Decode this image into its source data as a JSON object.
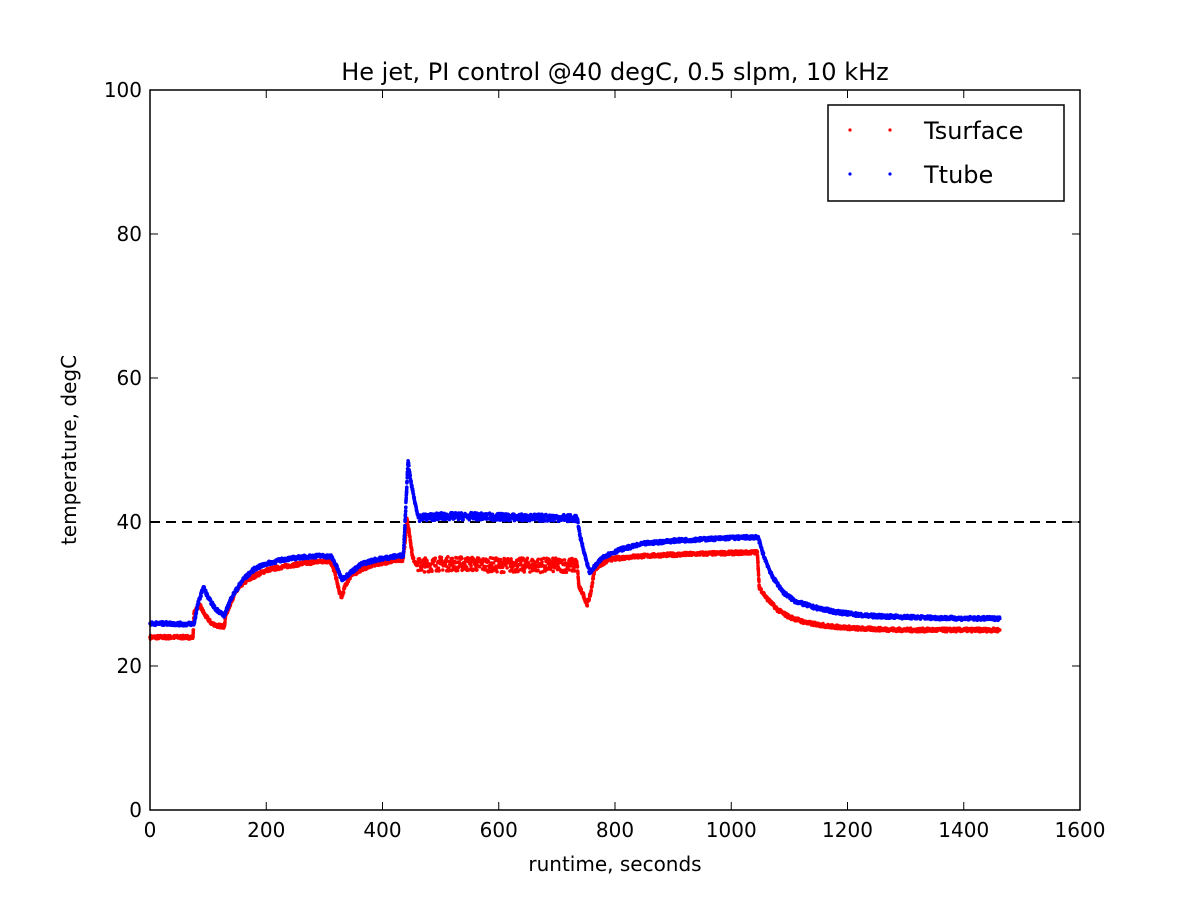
{
  "chart_data": {
    "type": "scatter",
    "title": "He jet, PI control @40 degC, 0.5 slpm, 10 kHz",
    "xlabel": "runtime, seconds",
    "ylabel": "temperature, degC",
    "xlim": [
      0,
      1600
    ],
    "ylim": [
      0,
      100
    ],
    "xticks": [
      0,
      200,
      400,
      600,
      800,
      1000,
      1200,
      1400,
      1600
    ],
    "yticks": [
      0,
      20,
      40,
      60,
      80,
      100
    ],
    "x_tick_labels": [
      "0",
      "200",
      "400",
      "600",
      "800",
      "1000",
      "1200",
      "1400",
      "1600"
    ],
    "y_tick_labels": [
      "0",
      "20",
      "40",
      "60",
      "80",
      "100"
    ],
    "grid": false,
    "legend_position": "top-right",
    "reference_line": {
      "y": 40,
      "style": "dashed",
      "color": "#000000"
    },
    "series": [
      {
        "name": "Tsurface",
        "color": "#ff0000",
        "points": [
          [
            0,
            24.0
          ],
          [
            20,
            24.0
          ],
          [
            40,
            24.0
          ],
          [
            60,
            24.0
          ],
          [
            74,
            24.0
          ],
          [
            76,
            27.5
          ],
          [
            85,
            28.5
          ],
          [
            95,
            27.0
          ],
          [
            105,
            26.0
          ],
          [
            115,
            25.6
          ],
          [
            128,
            25.5
          ],
          [
            130,
            27.0
          ],
          [
            145,
            30.0
          ],
          [
            160,
            31.5
          ],
          [
            180,
            32.5
          ],
          [
            200,
            33.3
          ],
          [
            230,
            33.8
          ],
          [
            260,
            34.2
          ],
          [
            290,
            34.5
          ],
          [
            310,
            34.6
          ],
          [
            318,
            33.0
          ],
          [
            325,
            30.5
          ],
          [
            330,
            29.5
          ],
          [
            335,
            31.0
          ],
          [
            345,
            32.5
          ],
          [
            365,
            33.5
          ],
          [
            390,
            34.2
          ],
          [
            420,
            34.6
          ],
          [
            435,
            34.8
          ],
          [
            438,
            36.5
          ],
          [
            442,
            40.5
          ],
          [
            447,
            38.0
          ],
          [
            452,
            35.0
          ],
          [
            460,
            34.0
          ],
          [
            500,
            34.2
          ],
          [
            550,
            34.2
          ],
          [
            600,
            34.0
          ],
          [
            650,
            34.0
          ],
          [
            700,
            34.0
          ],
          [
            735,
            34.0
          ],
          [
            738,
            31.0
          ],
          [
            745,
            30.0
          ],
          [
            752,
            28.5
          ],
          [
            758,
            30.0
          ],
          [
            765,
            33.5
          ],
          [
            790,
            34.8
          ],
          [
            830,
            35.2
          ],
          [
            880,
            35.4
          ],
          [
            950,
            35.6
          ],
          [
            1000,
            35.7
          ],
          [
            1045,
            35.8
          ],
          [
            1048,
            31.0
          ],
          [
            1060,
            29.5
          ],
          [
            1080,
            27.8
          ],
          [
            1100,
            26.8
          ],
          [
            1130,
            26.0
          ],
          [
            1170,
            25.5
          ],
          [
            1220,
            25.2
          ],
          [
            1300,
            25.0
          ],
          [
            1400,
            25.0
          ],
          [
            1462,
            25.0
          ]
        ]
      },
      {
        "name": "Ttube",
        "color": "#0000ff",
        "points": [
          [
            0,
            25.9
          ],
          [
            30,
            25.9
          ],
          [
            60,
            25.8
          ],
          [
            76,
            25.9
          ],
          [
            82,
            28.5
          ],
          [
            92,
            31.0
          ],
          [
            100,
            29.5
          ],
          [
            112,
            28.0
          ],
          [
            128,
            27.0
          ],
          [
            140,
            29.5
          ],
          [
            160,
            32.0
          ],
          [
            180,
            33.5
          ],
          [
            200,
            34.2
          ],
          [
            230,
            34.8
          ],
          [
            260,
            35.1
          ],
          [
            290,
            35.3
          ],
          [
            312,
            35.2
          ],
          [
            320,
            34.0
          ],
          [
            330,
            32.0
          ],
          [
            345,
            33.0
          ],
          [
            365,
            34.2
          ],
          [
            390,
            34.8
          ],
          [
            420,
            35.2
          ],
          [
            436,
            35.4
          ],
          [
            440,
            42.0
          ],
          [
            444,
            48.5
          ],
          [
            448,
            46.0
          ],
          [
            455,
            43.0
          ],
          [
            462,
            40.6
          ],
          [
            500,
            40.8
          ],
          [
            550,
            40.8
          ],
          [
            600,
            40.7
          ],
          [
            650,
            40.6
          ],
          [
            700,
            40.6
          ],
          [
            735,
            40.5
          ],
          [
            740,
            38.0
          ],
          [
            748,
            35.5
          ],
          [
            756,
            33.0
          ],
          [
            762,
            33.5
          ],
          [
            780,
            35.2
          ],
          [
            810,
            36.2
          ],
          [
            850,
            37.0
          ],
          [
            900,
            37.4
          ],
          [
            950,
            37.6
          ],
          [
            1000,
            37.8
          ],
          [
            1046,
            37.9
          ],
          [
            1055,
            35.5
          ],
          [
            1070,
            32.5
          ],
          [
            1090,
            30.2
          ],
          [
            1110,
            29.0
          ],
          [
            1140,
            28.2
          ],
          [
            1180,
            27.5
          ],
          [
            1230,
            27.0
          ],
          [
            1300,
            26.8
          ],
          [
            1400,
            26.6
          ],
          [
            1462,
            26.6
          ]
        ]
      }
    ]
  }
}
